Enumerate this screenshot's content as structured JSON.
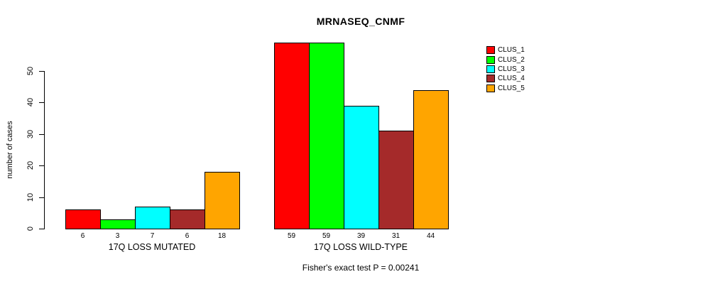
{
  "chart_data": {
    "type": "bar",
    "title": "MRNASEQ_CNMF",
    "ylabel": "number of cases",
    "xlabel": "",
    "caption": "Fisher's exact test P = 0.00241",
    "ylim": [
      0,
      59
    ],
    "yticks": [
      0,
      10,
      20,
      30,
      40,
      50
    ],
    "grid": false,
    "legend_position": "top-right",
    "categories": [
      "17Q LOSS MUTATED",
      "17Q LOSS WILD-TYPE"
    ],
    "series": [
      {
        "name": "CLUS_1",
        "color": "#FF0000",
        "values": [
          6,
          59
        ]
      },
      {
        "name": "CLUS_2",
        "color": "#00FF00",
        "values": [
          3,
          59
        ]
      },
      {
        "name": "CLUS_3",
        "color": "#00FFFF",
        "values": [
          7,
          39
        ]
      },
      {
        "name": "CLUS_4",
        "color": "#A52A2A",
        "values": [
          6,
          31
        ]
      },
      {
        "name": "CLUS_5",
        "color": "#FFA500",
        "values": [
          18,
          44
        ]
      }
    ],
    "bar_value_labels": [
      [
        "6",
        "3",
        "7",
        "6",
        "18"
      ],
      [
        "59",
        "59",
        "39",
        "31",
        "44"
      ]
    ]
  }
}
